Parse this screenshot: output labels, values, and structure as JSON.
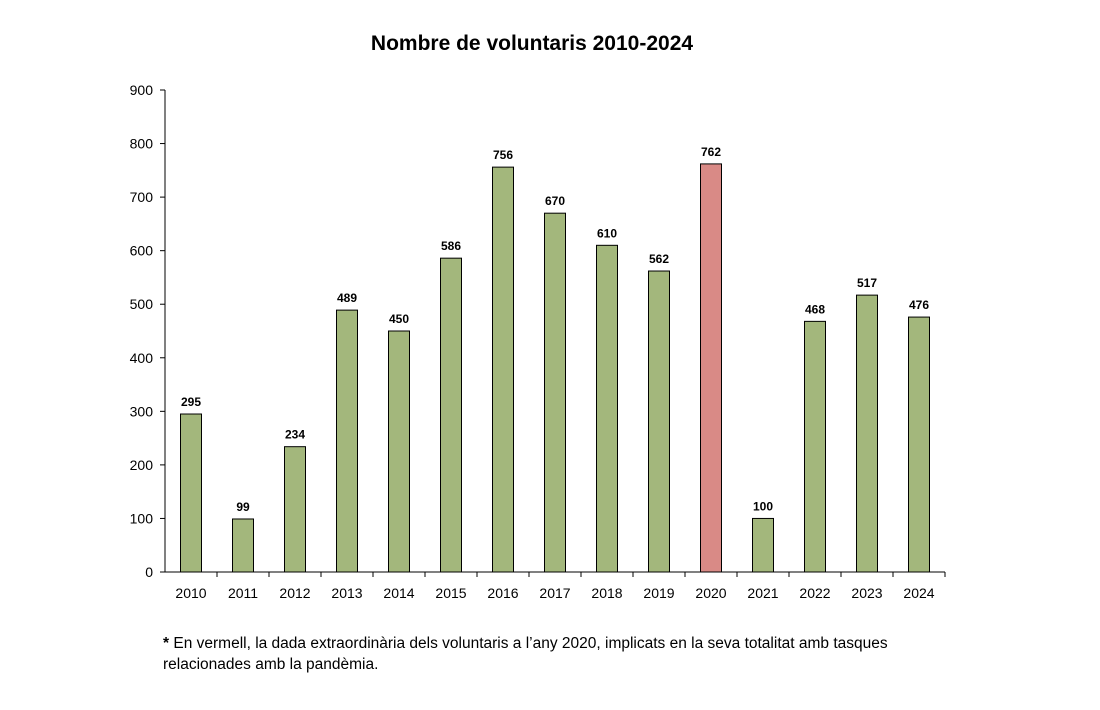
{
  "chart_data": {
    "type": "bar",
    "title": "Nombre de voluntaris 2010-2024",
    "categories": [
      "2010",
      "2011",
      "2012",
      "2013",
      "2014",
      "2015",
      "2016",
      "2017",
      "2018",
      "2019",
      "2020",
      "2021",
      "2022",
      "2023",
      "2024"
    ],
    "values": [
      295,
      99,
      234,
      489,
      450,
      586,
      756,
      670,
      610,
      562,
      762,
      100,
      468,
      517,
      476
    ],
    "highlight_category": "2020",
    "colors": {
      "bar": "#a3b77c",
      "highlight": "#d98a86",
      "outline": "#000000"
    },
    "xlabel": "",
    "ylabel": "",
    "ylim": [
      0,
      900
    ],
    "yticks": [
      0,
      100,
      200,
      300,
      400,
      500,
      600,
      700,
      800,
      900
    ],
    "grid": false,
    "legend": "none"
  },
  "footnote": {
    "marker": "*",
    "text": "En vermell, la dada extraordinària dels voluntaris a l’any 2020, implicats en la seva totalitat amb tasques relacionades amb la pandèmia."
  }
}
